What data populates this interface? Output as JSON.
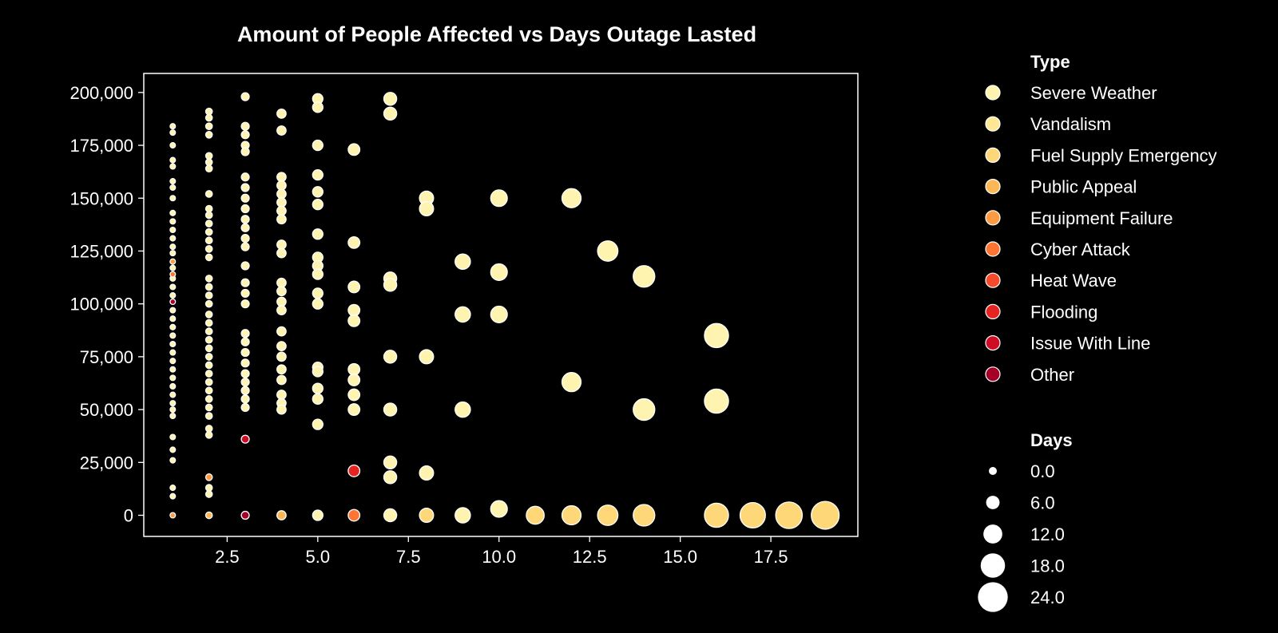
{
  "chart_data": {
    "type": "scatter",
    "title": "Amount of People Affected vs Days Outage Lasted",
    "xlabel": "",
    "ylabel": "",
    "xlim": [
      0.2,
      19.9
    ],
    "ylim": [
      -10000,
      209000
    ],
    "xticks": [
      2.5,
      5.0,
      7.5,
      10.0,
      12.5,
      15.0,
      17.5
    ],
    "xtick_labels": [
      "2.5",
      "5.0",
      "7.5",
      "10.0",
      "12.5",
      "15.0",
      "17.5"
    ],
    "yticks": [
      0,
      25000,
      50000,
      75000,
      100000,
      125000,
      150000,
      175000,
      200000
    ],
    "ytick_labels": [
      "0",
      "25,000",
      "50,000",
      "75,000",
      "100,000",
      "125,000",
      "150,000",
      "175,000",
      "200,000"
    ],
    "grid": false,
    "point_outline": "#ffffff",
    "hue": {
      "title": "Type",
      "categories": [
        {
          "name": "Severe Weather",
          "color": "#FFF3B0"
        },
        {
          "name": "Vandalism",
          "color": "#FEE795"
        },
        {
          "name": "Fuel Supply Emergency",
          "color": "#FED778"
        },
        {
          "name": "Public Appeal",
          "color": "#FDB856"
        },
        {
          "name": "Equipment Failure",
          "color": "#FD9A42"
        },
        {
          "name": "Cyber Attack",
          "color": "#FC7533"
        },
        {
          "name": "Heat Wave",
          "color": "#F64A2A"
        },
        {
          "name": "Flooding",
          "color": "#E52421"
        },
        {
          "name": "Issue With Line",
          "color": "#CE0C23"
        },
        {
          "name": "Other",
          "color": "#A70026"
        }
      ]
    },
    "size": {
      "title": "Days",
      "entries": [
        0.0,
        6.0,
        12.0,
        18.0,
        24.0
      ],
      "entry_labels": [
        "0.0",
        "6.0",
        "12.0",
        "18.0",
        "24.0"
      ]
    },
    "series": [
      {
        "name": "Severe Weather",
        "points": [
          [
            1,
            184000
          ],
          [
            1,
            181000
          ],
          [
            1,
            175000
          ],
          [
            1,
            168000
          ],
          [
            1,
            165000
          ],
          [
            1,
            158000
          ],
          [
            1,
            155000
          ],
          [
            1,
            150000
          ],
          [
            1,
            143000
          ],
          [
            1,
            139000
          ],
          [
            1,
            135000
          ],
          [
            1,
            131000
          ],
          [
            1,
            127000
          ],
          [
            1,
            124000
          ],
          [
            1,
            117000
          ],
          [
            1,
            112000
          ],
          [
            1,
            108000
          ],
          [
            1,
            104000
          ],
          [
            1,
            97000
          ],
          [
            1,
            93000
          ],
          [
            1,
            89000
          ],
          [
            1,
            85000
          ],
          [
            1,
            81000
          ],
          [
            1,
            77000
          ],
          [
            1,
            73000
          ],
          [
            1,
            69000
          ],
          [
            1,
            65000
          ],
          [
            1,
            61000
          ],
          [
            1,
            57000
          ],
          [
            1,
            53000
          ],
          [
            1,
            50000
          ],
          [
            1,
            47000
          ],
          [
            1,
            37000
          ],
          [
            1,
            31000
          ],
          [
            1,
            26000
          ],
          [
            1,
            13000
          ],
          [
            1,
            9000
          ],
          [
            2,
            191000
          ],
          [
            2,
            188000
          ],
          [
            2,
            184000
          ],
          [
            2,
            180000
          ],
          [
            2,
            170000
          ],
          [
            2,
            167000
          ],
          [
            2,
            164000
          ],
          [
            2,
            152000
          ],
          [
            2,
            145000
          ],
          [
            2,
            142000
          ],
          [
            2,
            138000
          ],
          [
            2,
            134000
          ],
          [
            2,
            130000
          ],
          [
            2,
            126000
          ],
          [
            2,
            122000
          ],
          [
            2,
            112000
          ],
          [
            2,
            108000
          ],
          [
            2,
            104000
          ],
          [
            2,
            100000
          ],
          [
            2,
            95000
          ],
          [
            2,
            91000
          ],
          [
            2,
            87000
          ],
          [
            2,
            83000
          ],
          [
            2,
            79000
          ],
          [
            2,
            75000
          ],
          [
            2,
            71000
          ],
          [
            2,
            67000
          ],
          [
            2,
            63000
          ],
          [
            2,
            59000
          ],
          [
            2,
            55000
          ],
          [
            2,
            51000
          ],
          [
            2,
            47000
          ],
          [
            2,
            41000
          ],
          [
            2,
            38000
          ],
          [
            2,
            13000
          ],
          [
            2,
            10000
          ],
          [
            3,
            198000
          ],
          [
            3,
            184000
          ],
          [
            3,
            180000
          ],
          [
            3,
            175000
          ],
          [
            3,
            172000
          ],
          [
            3,
            160000
          ],
          [
            3,
            155000
          ],
          [
            3,
            150000
          ],
          [
            3,
            145000
          ],
          [
            3,
            140000
          ],
          [
            3,
            136000
          ],
          [
            3,
            131000
          ],
          [
            3,
            127000
          ],
          [
            3,
            118000
          ],
          [
            3,
            110000
          ],
          [
            3,
            105000
          ],
          [
            3,
            100000
          ],
          [
            3,
            86000
          ],
          [
            3,
            82000
          ],
          [
            3,
            77000
          ],
          [
            3,
            72000
          ],
          [
            3,
            67000
          ],
          [
            3,
            63000
          ],
          [
            3,
            59000
          ],
          [
            3,
            55000
          ],
          [
            3,
            51000
          ],
          [
            4,
            190000
          ],
          [
            4,
            182000
          ],
          [
            4,
            160000
          ],
          [
            4,
            156000
          ],
          [
            4,
            152000
          ],
          [
            4,
            148000
          ],
          [
            4,
            144000
          ],
          [
            4,
            140000
          ],
          [
            4,
            128000
          ],
          [
            4,
            124000
          ],
          [
            4,
            110000
          ],
          [
            4,
            106000
          ],
          [
            4,
            101000
          ],
          [
            4,
            97000
          ],
          [
            4,
            87000
          ],
          [
            4,
            80000
          ],
          [
            4,
            75000
          ],
          [
            4,
            69000
          ],
          [
            4,
            64000
          ],
          [
            4,
            57000
          ],
          [
            4,
            53000
          ],
          [
            4,
            50000
          ],
          [
            5,
            197000
          ],
          [
            5,
            193000
          ],
          [
            5,
            175000
          ],
          [
            5,
            161000
          ],
          [
            5,
            153000
          ],
          [
            5,
            147000
          ],
          [
            5,
            133000
          ],
          [
            5,
            122000
          ],
          [
            5,
            118000
          ],
          [
            5,
            114000
          ],
          [
            5,
            105000
          ],
          [
            5,
            100000
          ],
          [
            5,
            70000
          ],
          [
            5,
            68000
          ],
          [
            5,
            60000
          ],
          [
            5,
            55000
          ],
          [
            5,
            43000
          ],
          [
            5,
            0
          ],
          [
            6,
            173000
          ],
          [
            6,
            129000
          ],
          [
            6,
            108000
          ],
          [
            6,
            97000
          ],
          [
            6,
            92000
          ],
          [
            6,
            69000
          ],
          [
            6,
            64000
          ],
          [
            6,
            57000
          ],
          [
            6,
            50000
          ],
          [
            7,
            197000
          ],
          [
            7,
            190000
          ],
          [
            7,
            112000
          ],
          [
            7,
            109000
          ],
          [
            7,
            75000
          ],
          [
            7,
            50000
          ],
          [
            7,
            25000
          ],
          [
            7,
            18000
          ],
          [
            7,
            0
          ],
          [
            8,
            150000
          ],
          [
            8,
            145000
          ],
          [
            8,
            75000
          ],
          [
            8,
            20000
          ],
          [
            9,
            120000
          ],
          [
            9,
            95000
          ],
          [
            9,
            50000
          ],
          [
            9,
            0
          ],
          [
            10,
            150000
          ],
          [
            10,
            115000
          ],
          [
            10,
            95000
          ],
          [
            10,
            3000
          ],
          [
            12,
            150000
          ],
          [
            12,
            63000
          ],
          [
            13,
            125000
          ],
          [
            14,
            113000
          ],
          [
            14,
            50000
          ],
          [
            16,
            85000
          ],
          [
            16,
            54000
          ]
        ]
      },
      {
        "name": "Vandalism",
        "points": []
      },
      {
        "name": "Fuel Supply Emergency",
        "points": [
          [
            8,
            0
          ],
          [
            11,
            0
          ],
          [
            12,
            0
          ],
          [
            13,
            0
          ],
          [
            14,
            0
          ],
          [
            16,
            0
          ],
          [
            17,
            0
          ],
          [
            18,
            0
          ],
          [
            19,
            0
          ]
        ]
      },
      {
        "name": "Public Appeal",
        "points": [
          [
            2,
            0
          ],
          [
            4,
            0
          ]
        ]
      },
      {
        "name": "Equipment Failure",
        "points": [
          [
            1,
            0
          ],
          [
            1,
            120000
          ],
          [
            2,
            18000
          ]
        ]
      },
      {
        "name": "Cyber Attack",
        "points": [
          [
            1,
            114000
          ],
          [
            6,
            0
          ]
        ]
      },
      {
        "name": "Heat Wave",
        "points": []
      },
      {
        "name": "Flooding",
        "points": [
          [
            6,
            21000
          ]
        ]
      },
      {
        "name": "Issue With Line",
        "points": [
          [
            3,
            36000
          ]
        ]
      },
      {
        "name": "Other",
        "points": [
          [
            1,
            101000
          ],
          [
            3,
            0
          ]
        ]
      }
    ]
  }
}
